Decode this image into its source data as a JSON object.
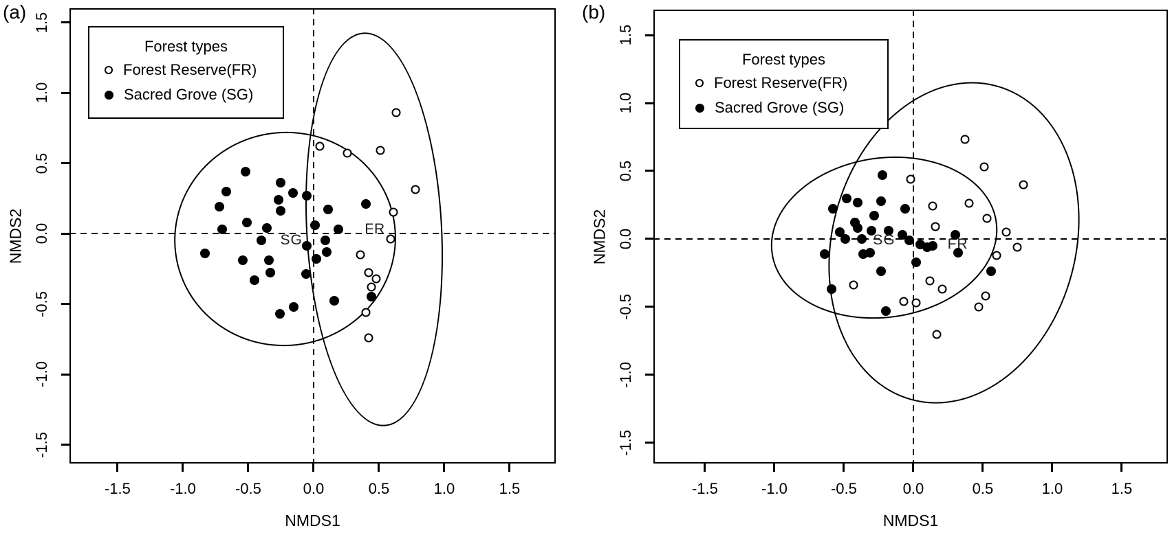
{
  "figure": {
    "background": "#ffffff",
    "foreground": "#000000",
    "legend": {
      "title": "Forest types",
      "items": [
        {
          "label": "Forest Reserve(FR)",
          "marker": "open-circle"
        },
        {
          "label": "Sacred Grove (SG)",
          "marker": "filled-circle"
        }
      ]
    }
  },
  "chart_data": [
    {
      "type": "scatter",
      "panel_label": "(a)",
      "xlabel": "NMDS1",
      "ylabel": "NMDS2",
      "xlim": [
        -1.868,
        1.853
      ],
      "ylim": [
        -1.634,
        1.6
      ],
      "grid": false,
      "xtick_values": [
        -1.5,
        -1.0,
        -0.5,
        0.0,
        0.5,
        1.0,
        1.5
      ],
      "xtick_labels": [
        "-1.5",
        "-1.0",
        "-0.5",
        "0.0",
        "0.5",
        "1.0",
        "1.5"
      ],
      "ytick_values": [
        -1.5,
        -1.0,
        -0.5,
        0.0,
        0.5,
        1.0,
        1.5
      ],
      "ytick_labels": [
        "-1.5",
        "-1.0",
        "-0.5",
        "0.0",
        "0.5",
        "1.0",
        "1.5"
      ],
      "reference_lines": {
        "vertical_x": 0.0,
        "horizontal_y": 0.0,
        "style": "dashed"
      },
      "series": [
        {
          "name": "Forest Reserve(FR)",
          "marker": "open-circle",
          "points": [
            [
              0.63,
              0.86
            ],
            [
              0.05,
              0.62
            ],
            [
              0.26,
              0.57
            ],
            [
              0.51,
              0.59
            ],
            [
              0.78,
              0.31
            ],
            [
              0.61,
              0.15
            ],
            [
              0.59,
              -0.04
            ],
            [
              0.36,
              -0.15
            ],
            [
              0.42,
              -0.28
            ],
            [
              0.48,
              -0.32
            ],
            [
              0.44,
              -0.38
            ],
            [
              0.4,
              -0.56
            ],
            [
              0.42,
              -0.74
            ]
          ]
        },
        {
          "name": "Sacred Grove (SG)",
          "marker": "filled-circle",
          "points": [
            [
              -0.52,
              0.44
            ],
            [
              -0.67,
              0.3
            ],
            [
              -0.25,
              0.36
            ],
            [
              -0.16,
              0.29
            ],
            [
              -0.27,
              0.24
            ],
            [
              -0.05,
              0.27
            ],
            [
              -0.25,
              0.16
            ],
            [
              -0.72,
              0.19
            ],
            [
              -0.51,
              0.08
            ],
            [
              -0.7,
              0.03
            ],
            [
              -0.36,
              0.04
            ],
            [
              0.01,
              0.06
            ],
            [
              -0.4,
              -0.05
            ],
            [
              -0.05,
              -0.09
            ],
            [
              -0.83,
              -0.14
            ],
            [
              0.09,
              -0.05
            ],
            [
              0.19,
              0.03
            ],
            [
              0.1,
              -0.13
            ],
            [
              -0.54,
              -0.19
            ],
            [
              -0.34,
              -0.19
            ],
            [
              0.02,
              -0.18
            ],
            [
              -0.33,
              -0.28
            ],
            [
              -0.06,
              -0.29
            ],
            [
              -0.45,
              -0.33
            ],
            [
              0.16,
              -0.48
            ],
            [
              -0.26,
              -0.57
            ],
            [
              -0.15,
              -0.52
            ],
            [
              0.4,
              0.21
            ],
            [
              0.44,
              -0.45
            ],
            [
              0.11,
              0.17
            ]
          ]
        }
      ],
      "ellipses": [
        {
          "group": "FR",
          "cx": 0.46,
          "cy": 0.03,
          "rx": 0.52,
          "ry": 1.4,
          "rotation_deg": -3
        },
        {
          "group": "SG",
          "cx": -0.22,
          "cy": -0.04,
          "rx": 0.85,
          "ry": 0.76,
          "rotation_deg": -10
        }
      ],
      "group_labels": [
        {
          "text": "SG",
          "x": -0.17,
          "y": -0.05
        },
        {
          "text": "FR",
          "x": 0.47,
          "y": 0.03
        }
      ]
    },
    {
      "type": "scatter",
      "panel_label": "(b)",
      "xlabel": "NMDS1",
      "ylabel": "NMDS2",
      "xlim": [
        -1.871,
        1.832
      ],
      "ylim": [
        -1.652,
        1.687
      ],
      "grid": false,
      "xtick_values": [
        -1.5,
        -1.0,
        -0.5,
        0.0,
        0.5,
        1.0,
        1.5
      ],
      "xtick_labels": [
        "-1.5",
        "-1.0",
        "-0.5",
        "0.0",
        "0.5",
        "1.0",
        "1.5"
      ],
      "ytick_values": [
        -1.5,
        -1.0,
        -0.5,
        0.0,
        0.5,
        1.0,
        1.5
      ],
      "ytick_labels": [
        "-1.5",
        "-1.0",
        "-0.5",
        "0.0",
        "0.5",
        "1.0",
        "1.5"
      ],
      "reference_lines": {
        "vertical_x": 0.0,
        "horizontal_y": 0.0,
        "style": "dashed"
      },
      "series": [
        {
          "name": "Forest Reserve(FR)",
          "marker": "open-circle",
          "points": [
            [
              0.37,
              0.73
            ],
            [
              0.51,
              0.53
            ],
            [
              0.79,
              0.4
            ],
            [
              -0.02,
              0.44
            ],
            [
              0.14,
              0.24
            ],
            [
              0.4,
              0.26
            ],
            [
              0.53,
              0.15
            ],
            [
              0.16,
              0.09
            ],
            [
              0.67,
              0.05
            ],
            [
              0.75,
              -0.06
            ],
            [
              0.6,
              -0.12
            ],
            [
              0.12,
              -0.31
            ],
            [
              0.21,
              -0.37
            ],
            [
              0.52,
              -0.42
            ],
            [
              0.47,
              -0.5
            ],
            [
              0.02,
              -0.47
            ],
            [
              -0.07,
              -0.46
            ],
            [
              -0.43,
              -0.34
            ],
            [
              0.17,
              -0.7
            ]
          ]
        },
        {
          "name": "Sacred Grove (SG)",
          "marker": "filled-circle",
          "points": [
            [
              -0.22,
              0.47
            ],
            [
              -0.48,
              0.3
            ],
            [
              -0.4,
              0.27
            ],
            [
              -0.23,
              0.28
            ],
            [
              -0.58,
              0.22
            ],
            [
              -0.06,
              0.22
            ],
            [
              -0.28,
              0.17
            ],
            [
              -0.42,
              0.12
            ],
            [
              -0.4,
              0.08
            ],
            [
              -0.3,
              0.06
            ],
            [
              -0.53,
              0.05
            ],
            [
              -0.49,
              0.0
            ],
            [
              -0.37,
              0.0
            ],
            [
              -0.18,
              0.06
            ],
            [
              -0.08,
              0.03
            ],
            [
              -0.03,
              -0.01
            ],
            [
              0.05,
              -0.04
            ],
            [
              0.1,
              -0.06
            ],
            [
              0.14,
              -0.05
            ],
            [
              0.3,
              0.03
            ],
            [
              0.32,
              -0.1
            ],
            [
              -0.64,
              -0.11
            ],
            [
              -0.36,
              -0.11
            ],
            [
              -0.31,
              -0.1
            ],
            [
              0.02,
              -0.17
            ],
            [
              -0.23,
              -0.24
            ],
            [
              -0.59,
              -0.37
            ],
            [
              -0.2,
              -0.53
            ],
            [
              0.56,
              -0.24
            ]
          ]
        }
      ],
      "ellipses": [
        {
          "group": "FR",
          "cx": 0.29,
          "cy": -0.03,
          "rx": 0.88,
          "ry": 1.2,
          "rotation_deg": 15
        },
        {
          "group": "SG",
          "cx": -0.21,
          "cy": 0.01,
          "rx": 0.82,
          "ry": 0.59,
          "rotation_deg": -8
        }
      ],
      "group_labels": [
        {
          "text": "SG",
          "x": -0.21,
          "y": -0.01
        },
        {
          "text": "FR",
          "x": 0.32,
          "y": -0.04
        }
      ]
    }
  ]
}
